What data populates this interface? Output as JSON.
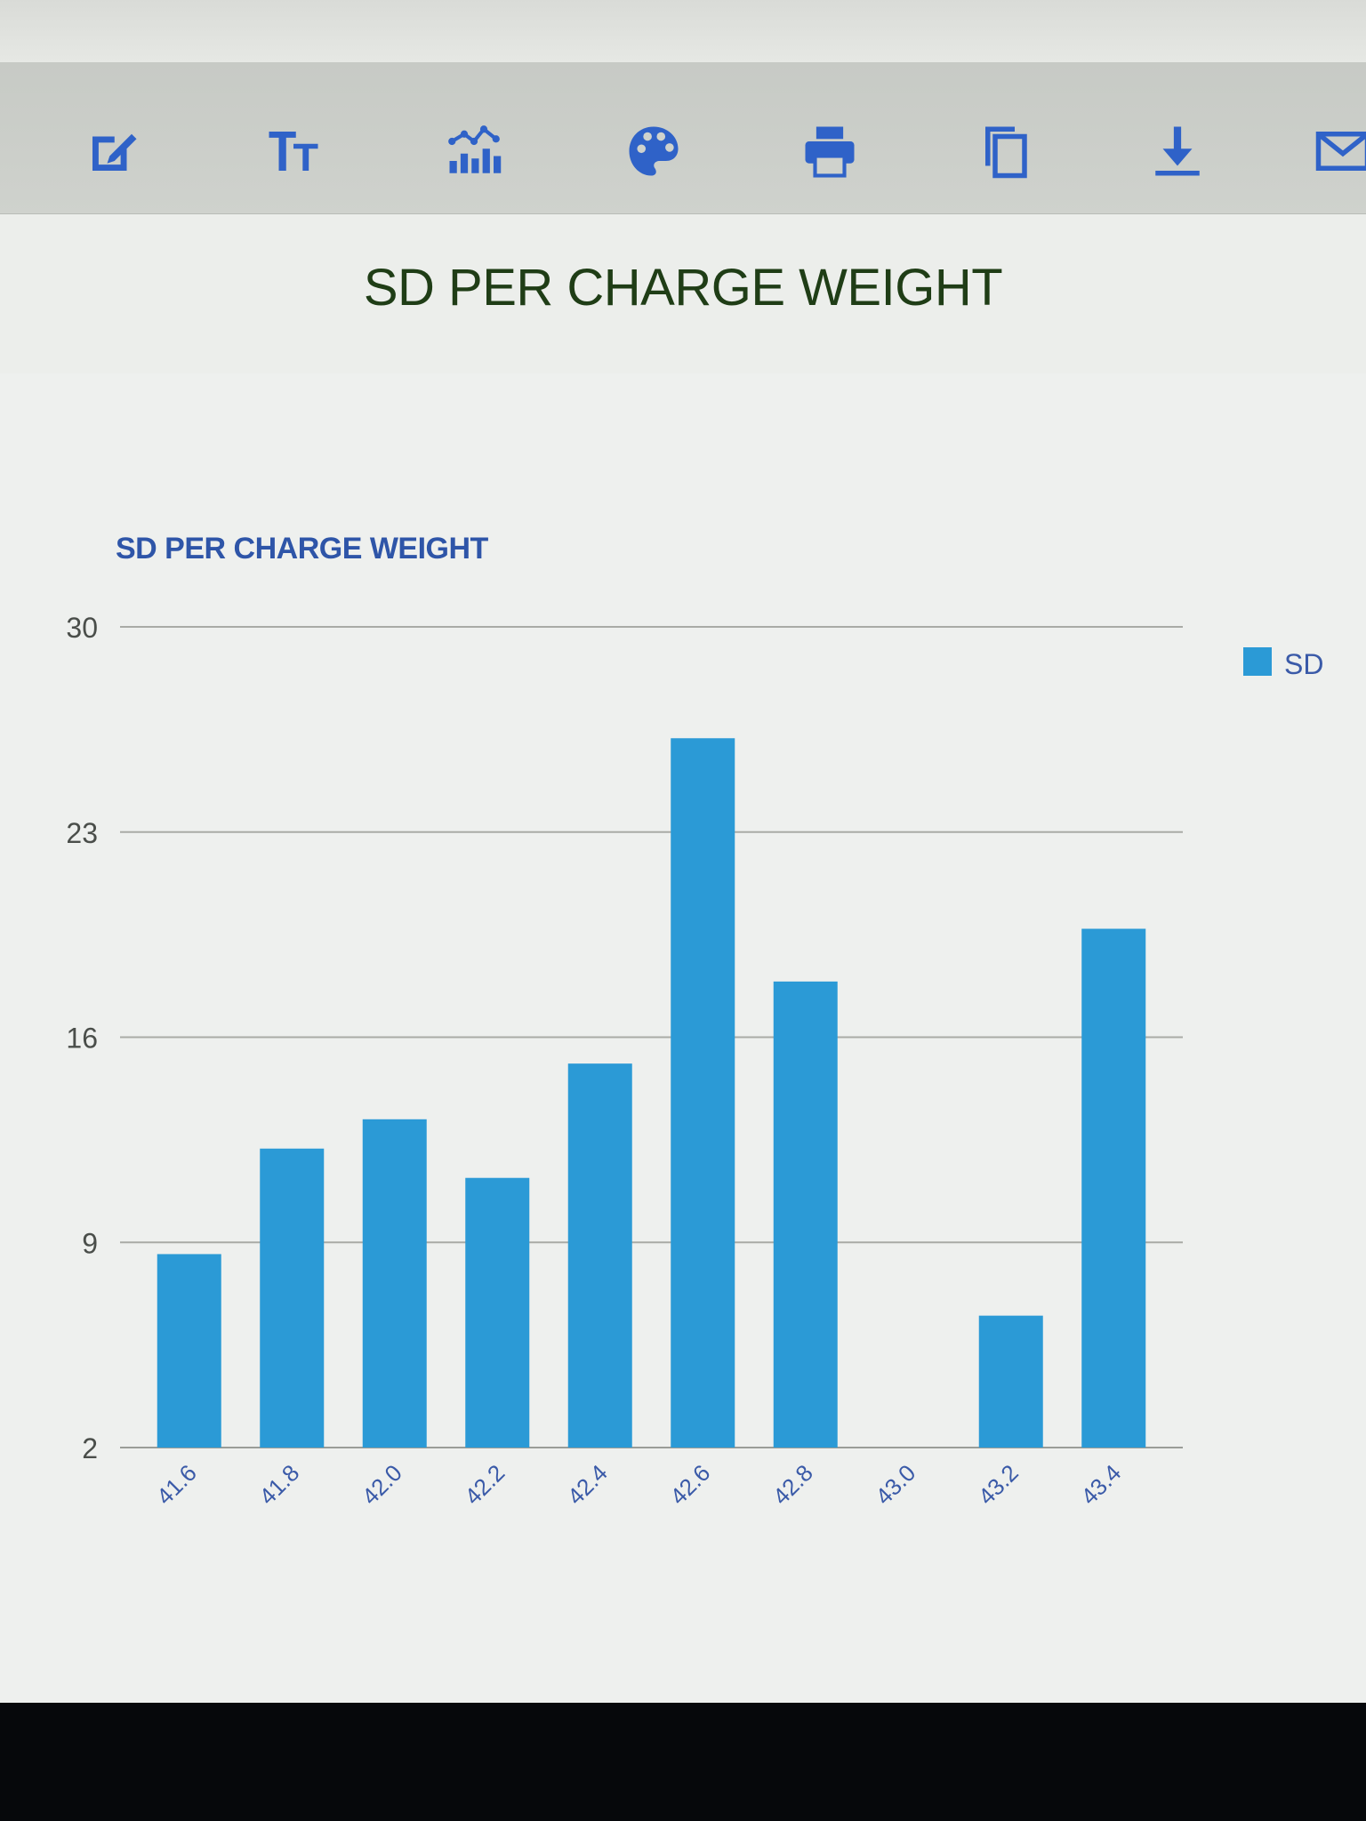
{
  "page": {
    "title": "SD PER CHARGE WEIGHT"
  },
  "toolbar": {
    "items": [
      {
        "icon": "edit-icon"
      },
      {
        "icon": "text-size-icon"
      },
      {
        "icon": "chart-type-icon"
      },
      {
        "icon": "palette-icon"
      },
      {
        "icon": "print-icon"
      },
      {
        "icon": "copy-icon"
      },
      {
        "icon": "download-icon"
      },
      {
        "icon": "mail-icon"
      }
    ],
    "icon_color": "#2f62c8"
  },
  "chart_data": {
    "type": "bar",
    "title": "SD PER CHARGE WEIGHT",
    "xlabel": "",
    "ylabel": "",
    "categories": [
      "41.6",
      "41.8",
      "42.0",
      "42.2",
      "42.4",
      "42.6",
      "42.8",
      "43.0",
      "43.2",
      "43.4"
    ],
    "series": [
      {
        "name": "SD",
        "values": [
          8.6,
          12.2,
          13.2,
          11.2,
          15.1,
          26.2,
          17.9,
          1.4,
          6.5,
          19.7
        ],
        "color": "#2b9ad6"
      }
    ],
    "yticks": [
      "2",
      "9",
      "16",
      "23",
      "30"
    ],
    "ylim": [
      2,
      30
    ],
    "grid": true,
    "legend": "right"
  }
}
